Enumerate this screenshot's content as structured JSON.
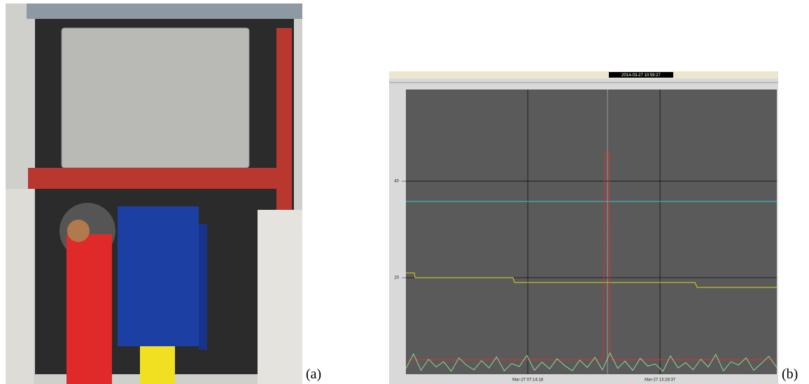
{
  "figure": {
    "label_a": "(a)",
    "label_b": "(b)"
  },
  "chart_data": {
    "type": "line",
    "title": "2014-03-27 10:59:27",
    "xlim": [
      1.49,
      18.99
    ],
    "ylim": [
      0,
      59
    ],
    "xticks": [
      {
        "value": 7.24,
        "label": "Mar-27 07:14:18"
      },
      {
        "value": 13.48,
        "label": "Mar-27 13:28:37"
      }
    ],
    "yticks": [
      20,
      40
    ],
    "grid": true,
    "series": [
      {
        "color": "#3fc6d0",
        "x": [
          1.49,
          18.99
        ],
        "values": [
          35.8,
          35.8
        ]
      },
      {
        "color": "#d8d41c",
        "x": [
          1.49,
          1.89,
          1.92,
          6.54,
          6.61,
          15.13,
          15.23,
          18.99
        ],
        "values": [
          21,
          21,
          20,
          20,
          19,
          19,
          18,
          18
        ]
      },
      {
        "color": "#e03030",
        "x": [
          1.49,
          10.8,
          10.87,
          11.07,
          11.13,
          18.99
        ],
        "values": [
          3,
          3,
          46,
          46,
          3,
          3
        ]
      },
      {
        "color": "#8fd88f",
        "x": [
          1.49,
          1.85,
          2.2,
          2.56,
          2.92,
          3.27,
          3.63,
          3.99,
          4.34,
          4.7,
          5.06,
          5.41,
          5.77,
          6.13,
          6.48,
          6.84,
          7.2,
          7.55,
          7.91,
          8.27,
          8.62,
          8.98,
          9.34,
          9.69,
          10.05,
          10.41,
          10.76,
          11.12,
          11.48,
          11.83,
          12.19,
          12.55,
          12.9,
          13.26,
          13.62,
          13.97,
          14.33,
          14.69,
          15.04,
          15.4,
          15.76,
          16.11,
          16.47,
          16.83,
          17.18,
          17.54,
          17.9,
          18.25,
          18.61,
          18.99
        ],
        "values": [
          1.2,
          4.2,
          0.8,
          3.1,
          1.5,
          2.6,
          0.6,
          3.4,
          1.9,
          0.9,
          2.8,
          1.3,
          3.6,
          0.7,
          2.2,
          1.6,
          3.9,
          0.8,
          2.5,
          1.1,
          3.2,
          1.8,
          0.7,
          2.9,
          1.4,
          3.5,
          0.9,
          4.4,
          1.2,
          2.7,
          0.8,
          3.3,
          1.7,
          2.1,
          0.6,
          3.8,
          1.3,
          2.4,
          0.9,
          3.1,
          1.5,
          4.1,
          0.7,
          2.6,
          1.9,
          3.4,
          0.8,
          2.2,
          3.7,
          1.4
        ]
      }
    ]
  }
}
